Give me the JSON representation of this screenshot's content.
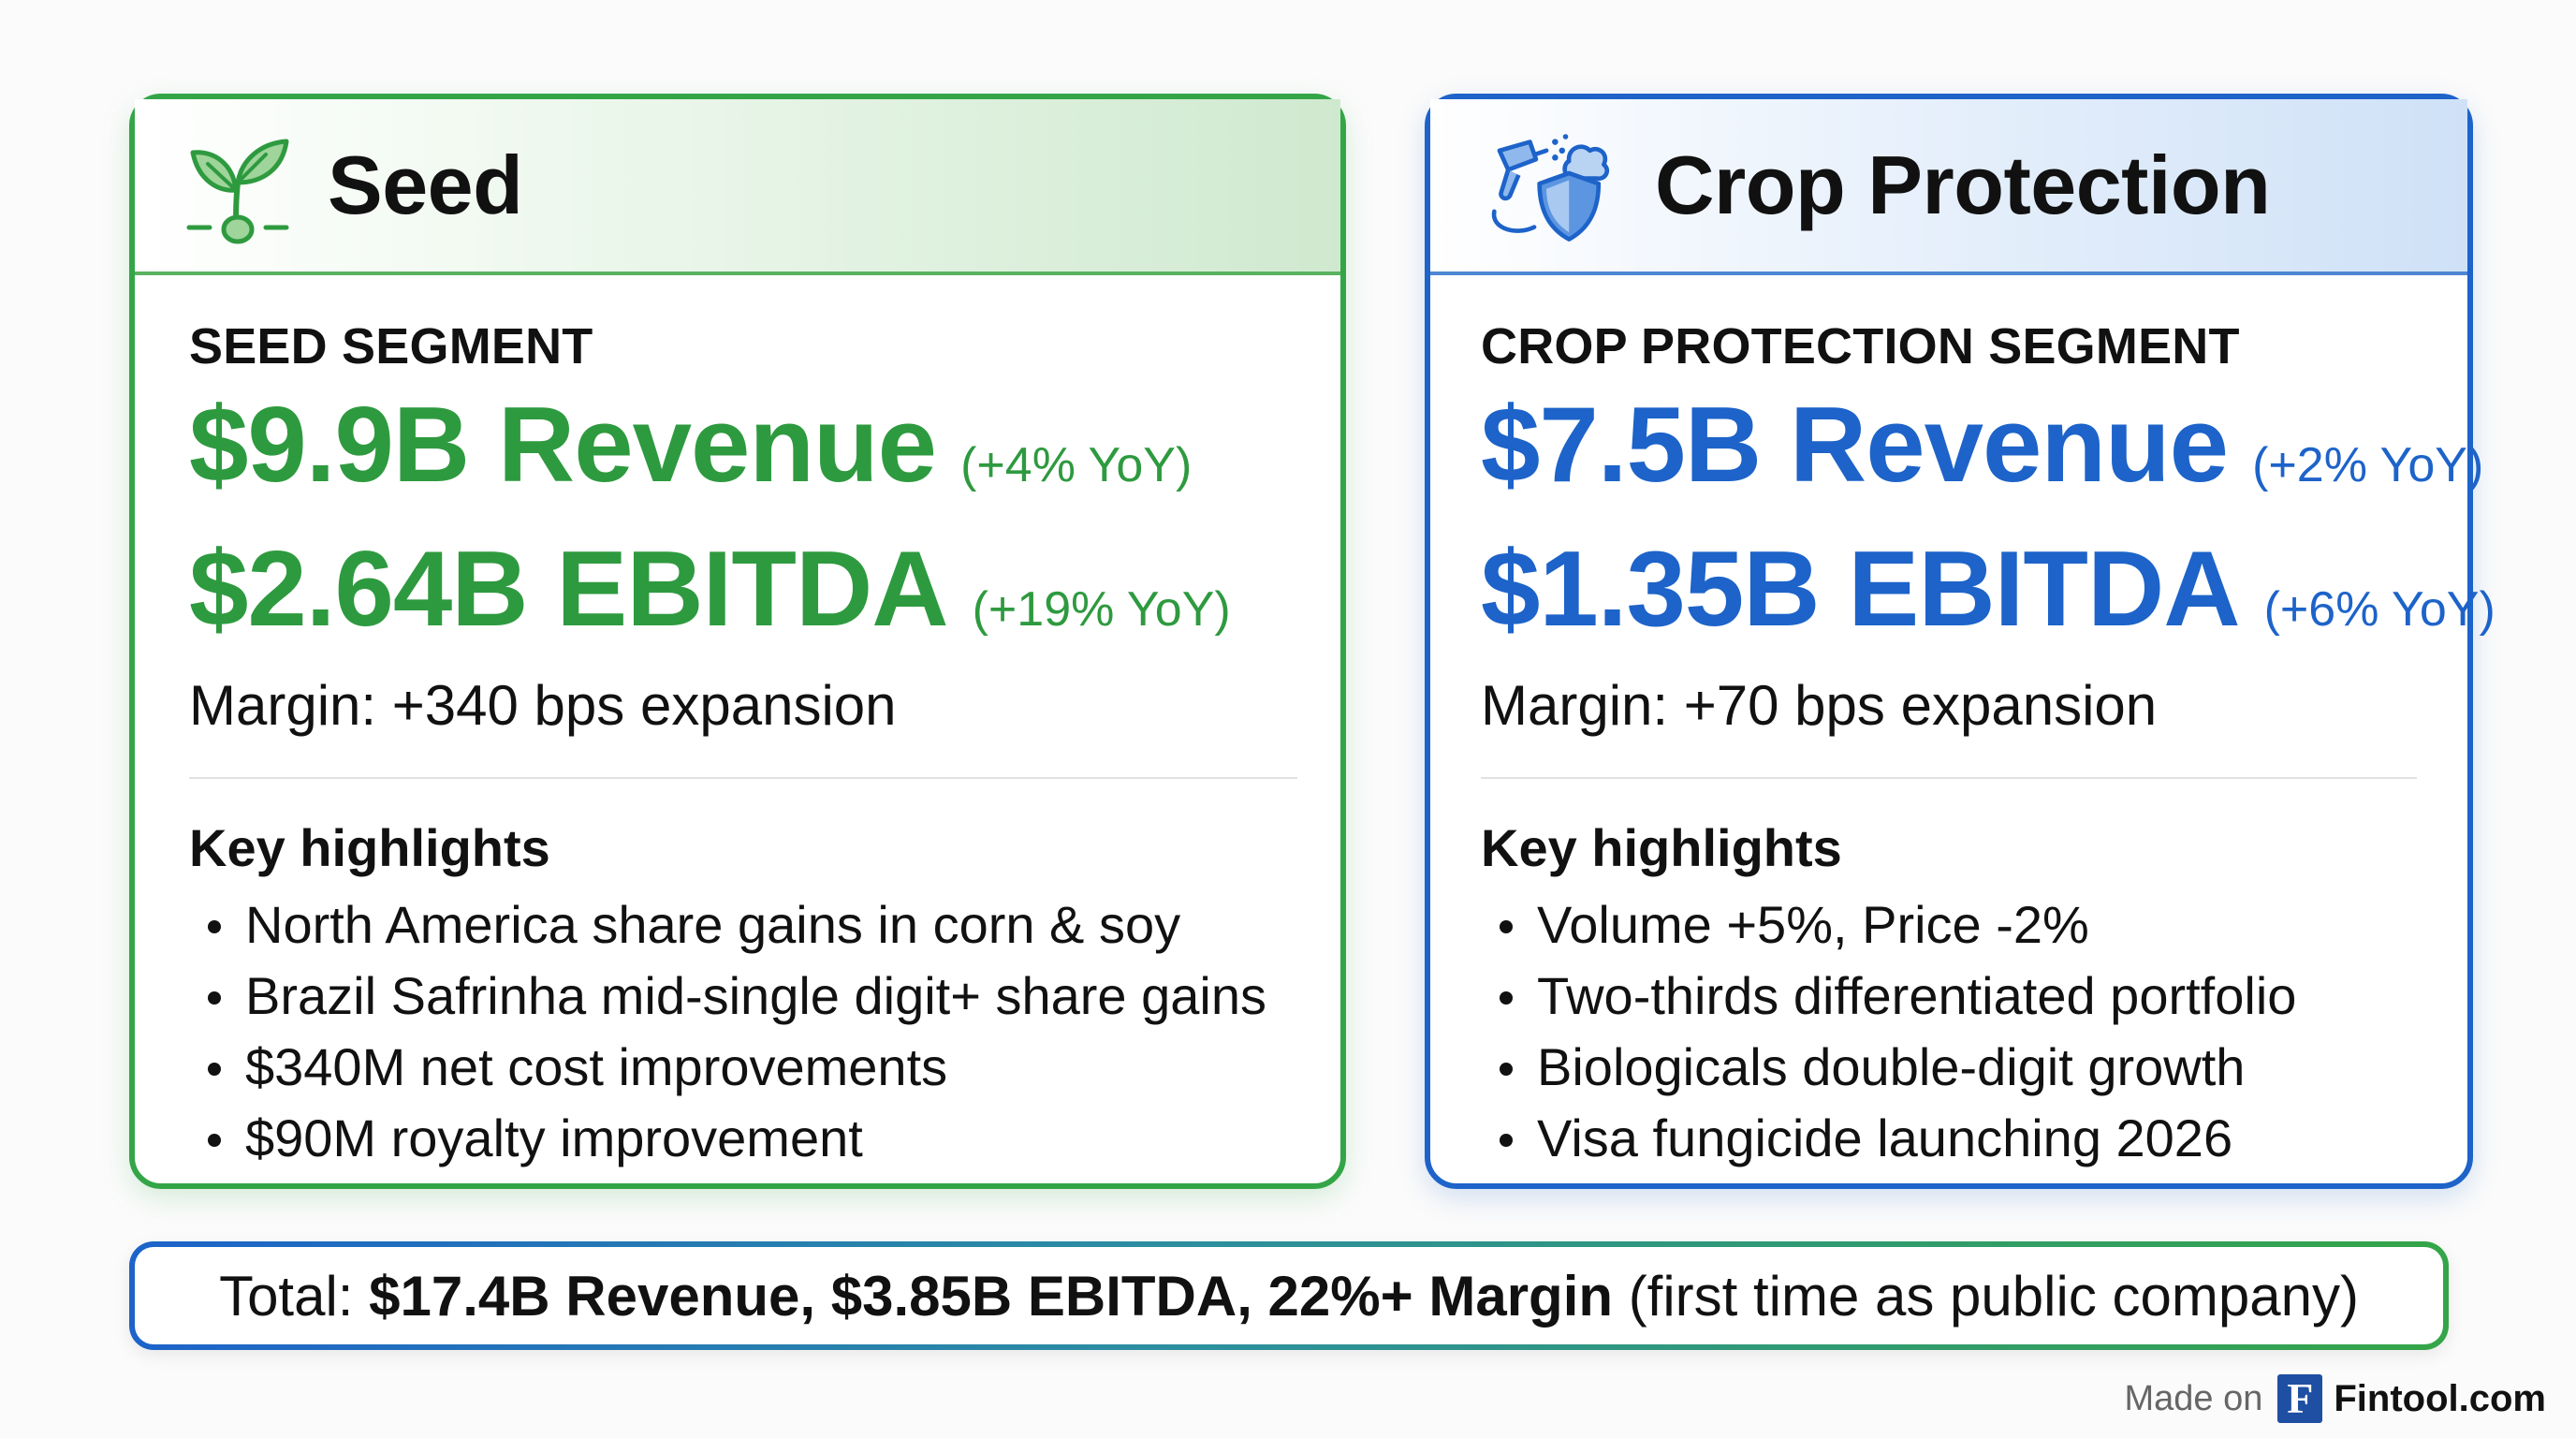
{
  "seed": {
    "title": "Seed",
    "icon": "sprout-icon",
    "segment_label": "SEED SEGMENT",
    "revenue": "$9.9B Revenue",
    "revenue_yoy": "(+4% YoY)",
    "ebitda": "$2.64B EBITDA",
    "ebitda_yoy": "(+19% YoY)",
    "margin": "Margin: +340 bps expansion",
    "highlights_title": "Key highlights",
    "highlights": [
      "North America share gains in corn & soy",
      "Brazil Safrinha mid-single digit+ share gains",
      "$340M net cost improvements",
      "$90M royalty improvement"
    ],
    "accent_color": "#34a547"
  },
  "crop": {
    "title": "Crop Protection",
    "icon": "sprayer-shield-icon",
    "segment_label": "CROP PROTECTION SEGMENT",
    "revenue": "$7.5B Revenue",
    "revenue_yoy": "(+2% YoY)",
    "ebitda": "$1.35B EBITDA",
    "ebitda_yoy": "(+6% YoY)",
    "margin": "Margin: +70 bps expansion",
    "highlights_title": "Key highlights",
    "highlights": [
      "Volume +5%, Price -2%",
      "Two-thirds differentiated portfolio",
      "Biologicals double-digit growth",
      "Visa fungicide launching 2026"
    ],
    "accent_color": "#1d63c9"
  },
  "total": {
    "prefix": "Total: ",
    "bold": "$17.4B Revenue, $3.85B EBITDA, 22%+ Margin",
    "suffix": " (first time as public company)"
  },
  "footer": {
    "made_on": "Made on",
    "logo_letter": "F",
    "brand": "Fintool.com"
  }
}
